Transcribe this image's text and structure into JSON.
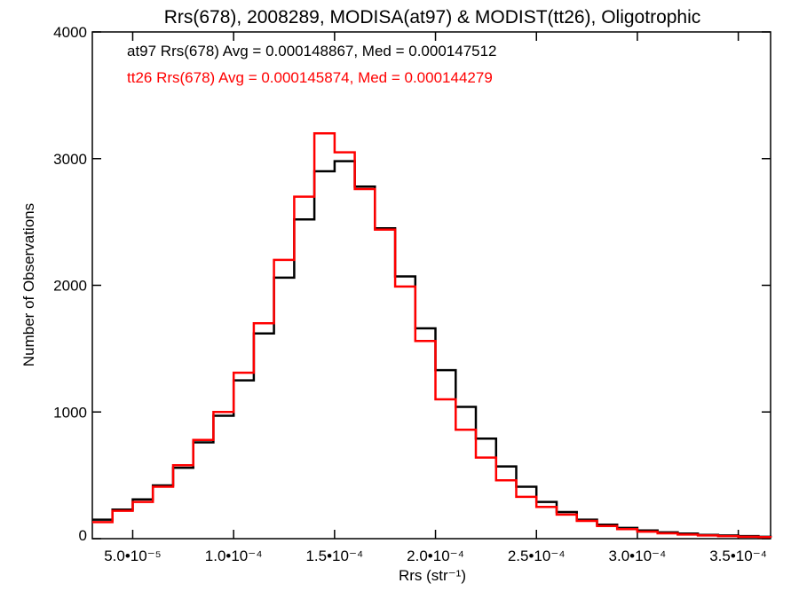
{
  "chart_data": {
    "type": "histogram",
    "title": "Rrs(678), 2008289, MODISA(at97) & MODIST(tt26), Oligotrophic",
    "xlabel": "Rrs (str⁻¹)",
    "ylabel": "Number of Observations",
    "xlim": [
      3e-05,
      0.000366
    ],
    "ylim": [
      0,
      4000
    ],
    "x_ticks": [
      5e-05,
      0.0001,
      0.00015,
      0.0002,
      0.00025,
      0.0003,
      0.00035
    ],
    "x_tick_labels": [
      "5.0•10⁻⁵",
      "1.0•10⁻⁴",
      "1.5•10⁻⁴",
      "2.0•10⁻⁴",
      "2.5•10⁻⁴",
      "3.0•10⁻⁴",
      "3.5•10⁻⁴"
    ],
    "y_ticks": [
      0,
      1000,
      2000,
      3000,
      4000
    ],
    "y_tick_labels": [
      "0",
      "1000",
      "2000",
      "3000",
      "4000"
    ],
    "grid": false,
    "legend_position": "top-left",
    "series": [
      {
        "name": "at97",
        "color": "#000000",
        "annotation": "at97 Rrs(678) Avg = 0.000148867, Med = 0.000147512",
        "x": [
          3e-05,
          4e-05,
          5e-05,
          6e-05,
          7e-05,
          8e-05,
          9e-05,
          0.0001,
          0.00011,
          0.00012,
          0.00013,
          0.00014,
          0.00015,
          0.00016,
          0.00017,
          0.00018,
          0.00019,
          0.0002,
          0.00021,
          0.00022,
          0.00023,
          0.00024,
          0.00025,
          0.00026,
          0.00027,
          0.00028,
          0.00029,
          0.0003,
          0.00031,
          0.00032,
          0.00033,
          0.00034,
          0.00035,
          0.00036,
          0.000366
        ],
        "y": [
          150,
          230,
          310,
          420,
          560,
          760,
          970,
          1250,
          1620,
          2060,
          2520,
          2900,
          2980,
          2780,
          2450,
          2070,
          1660,
          1330,
          1040,
          790,
          570,
          410,
          290,
          210,
          150,
          110,
          85,
          65,
          50,
          40,
          30,
          25,
          20,
          15,
          10
        ]
      },
      {
        "name": "tt26",
        "color": "#ff0000",
        "annotation": "tt26 Rrs(678) Avg = 0.000145874, Med = 0.000144279",
        "x": [
          3e-05,
          4e-05,
          5e-05,
          6e-05,
          7e-05,
          8e-05,
          9e-05,
          0.0001,
          0.00011,
          0.00012,
          0.00013,
          0.00014,
          0.00015,
          0.00016,
          0.00017,
          0.00018,
          0.00019,
          0.0002,
          0.00021,
          0.00022,
          0.00023,
          0.00024,
          0.00025,
          0.00026,
          0.00027,
          0.00028,
          0.00029,
          0.0003,
          0.00031,
          0.00032,
          0.00033,
          0.00034,
          0.00035,
          0.00036,
          0.000366
        ],
        "y": [
          130,
          220,
          290,
          410,
          580,
          780,
          1000,
          1310,
          1700,
          2200,
          2700,
          3200,
          3050,
          2760,
          2440,
          1990,
          1560,
          1100,
          860,
          640,
          460,
          330,
          250,
          190,
          140,
          100,
          75,
          55,
          42,
          32,
          25,
          20,
          15,
          12,
          8
        ]
      }
    ]
  }
}
